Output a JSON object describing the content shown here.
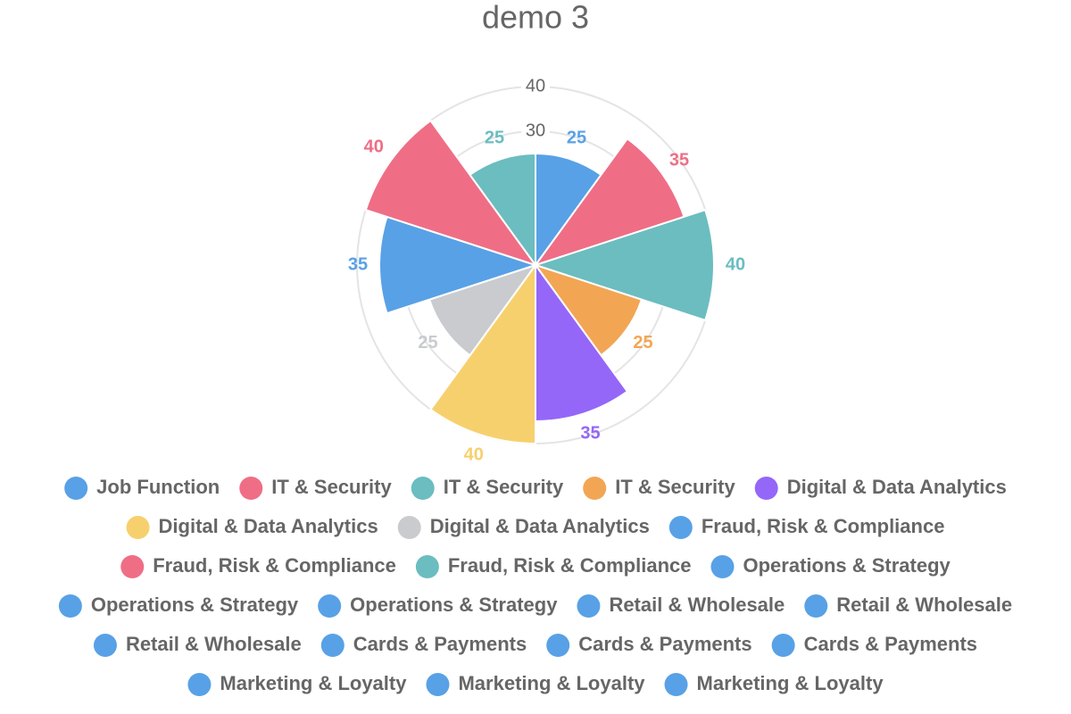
{
  "chart_data": {
    "type": "polarArea",
    "title": "demo 3",
    "categories": [
      "Job Function",
      "IT & Security",
      "IT & Security",
      "IT & Security",
      "Digital & Data Analytics",
      "Digital & Data Analytics",
      "Digital & Data Analytics",
      "Fraud, Risk & Compliance",
      "Fraud, Risk & Compliance",
      "Fraud, Risk & Compliance",
      "Operations & Strategy",
      "Operations & Strategy",
      "Operations & Strategy",
      "Retail & Wholesale",
      "Retail & Wholesale",
      "Retail & Wholesale",
      "Cards & Payments",
      "Cards & Payments",
      "Cards & Payments",
      "Marketing & Loyalty",
      "Marketing & Loyalty",
      "Marketing & Loyalty"
    ],
    "values": [
      25,
      35,
      40,
      25,
      35,
      40,
      25,
      35,
      40,
      25,
      null,
      null,
      null,
      null,
      null,
      null,
      null,
      null,
      null,
      null,
      null,
      null
    ],
    "colors": [
      "#58a1e6",
      "#ef6e85",
      "#6bbdc0",
      "#f2a654",
      "#9467f8",
      "#f7d06e",
      "#c9cbcf",
      "#58a1e6",
      "#ef6e85",
      "#6bbdc0",
      "#58a1e6",
      "#58a1e6",
      "#58a1e6",
      "#58a1e6",
      "#58a1e6",
      "#58a1e6",
      "#58a1e6",
      "#58a1e6",
      "#58a1e6",
      "#58a1e6",
      "#58a1e6",
      "#58a1e6"
    ],
    "rlim": [
      0,
      40
    ],
    "rticks": [
      30,
      40
    ],
    "grid": true,
    "legend": "bottom"
  }
}
